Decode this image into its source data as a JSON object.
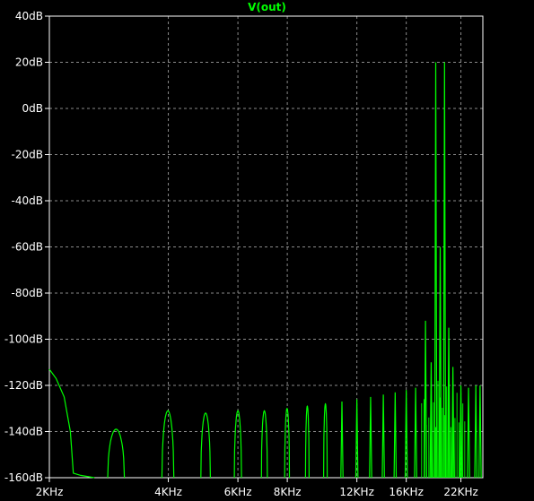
{
  "chart_data": {
    "type": "line",
    "title": "V(out)",
    "x_scale": "log",
    "xlim_hz": [
      2000,
      25000
    ],
    "ylim_db": [
      -160,
      40
    ],
    "grid": true,
    "y_ticks": [
      {
        "value": 40,
        "label": "40dB"
      },
      {
        "value": 20,
        "label": "20dB"
      },
      {
        "value": 0,
        "label": "0dB"
      },
      {
        "value": -20,
        "label": "-20dB"
      },
      {
        "value": -40,
        "label": "-40dB"
      },
      {
        "value": -60,
        "label": "-60dB"
      },
      {
        "value": -80,
        "label": "-80dB"
      },
      {
        "value": -100,
        "label": "-100dB"
      },
      {
        "value": -120,
        "label": "-120dB"
      },
      {
        "value": -140,
        "label": "-140dB"
      },
      {
        "value": -160,
        "label": "-160dB"
      }
    ],
    "x_ticks": [
      {
        "value": 2000,
        "label": "2KHz"
      },
      {
        "value": 4000,
        "label": "4KHz"
      },
      {
        "value": 6000,
        "label": "6KHz"
      },
      {
        "value": 8000,
        "label": "8KHz"
      },
      {
        "value": 12000,
        "label": "12KHz"
      },
      {
        "value": 16000,
        "label": "16KHz"
      },
      {
        "value": 22000,
        "label": "22KHz"
      }
    ],
    "x_gridlines_hz": [
      2000,
      4000,
      6000,
      8000,
      12000,
      16000,
      22000
    ],
    "series": [
      {
        "color": "#00ff00",
        "low_freq_rolloff": [
          [
            2000,
            -113
          ],
          [
            2080,
            -117
          ],
          [
            2180,
            -125
          ],
          [
            2260,
            -140
          ],
          [
            2300,
            -158
          ],
          [
            2400,
            -159
          ],
          [
            2600,
            -160
          ]
        ],
        "lobes": [
          {
            "f_hz": 2950,
            "peak_db": -139,
            "width_oct": 0.14
          },
          {
            "f_hz": 3990,
            "peak_db": -131,
            "width_oct": 0.1
          },
          {
            "f_hz": 4970,
            "peak_db": -132,
            "width_oct": 0.08
          },
          {
            "f_hz": 6000,
            "peak_db": -131,
            "width_oct": 0.06
          },
          {
            "f_hz": 7000,
            "peak_db": -131,
            "width_oct": 0.05
          },
          {
            "f_hz": 7990,
            "peak_db": -130,
            "width_oct": 0.04
          },
          {
            "f_hz": 8990,
            "peak_db": -129,
            "width_oct": 0.03
          },
          {
            "f_hz": 9990,
            "peak_db": -128,
            "width_oct": 0.03
          }
        ],
        "spikes": [
          {
            "f_hz": 11000,
            "db": -127
          },
          {
            "f_hz": 12000,
            "db": -126
          },
          {
            "f_hz": 13000,
            "db": -125
          },
          {
            "f_hz": 14000,
            "db": -124
          },
          {
            "f_hz": 15000,
            "db": -123
          },
          {
            "f_hz": 16000,
            "db": -122
          },
          {
            "f_hz": 16900,
            "db": -121
          },
          {
            "f_hz": 17900,
            "db": -92
          },
          {
            "f_hz": 18500,
            "db": -110
          },
          {
            "f_hz": 19000,
            "db": 20
          },
          {
            "f_hz": 19500,
            "db": -60
          },
          {
            "f_hz": 20000,
            "db": 20
          },
          {
            "f_hz": 20500,
            "db": -95
          },
          {
            "f_hz": 21000,
            "db": -112
          },
          {
            "f_hz": 22000,
            "db": -120
          },
          {
            "f_hz": 23000,
            "db": -121
          },
          {
            "f_hz": 24000,
            "db": -120
          },
          {
            "f_hz": 24600,
            "db": -120
          }
        ],
        "fine_comb_hz": [
          17500,
          22500
        ]
      }
    ]
  }
}
